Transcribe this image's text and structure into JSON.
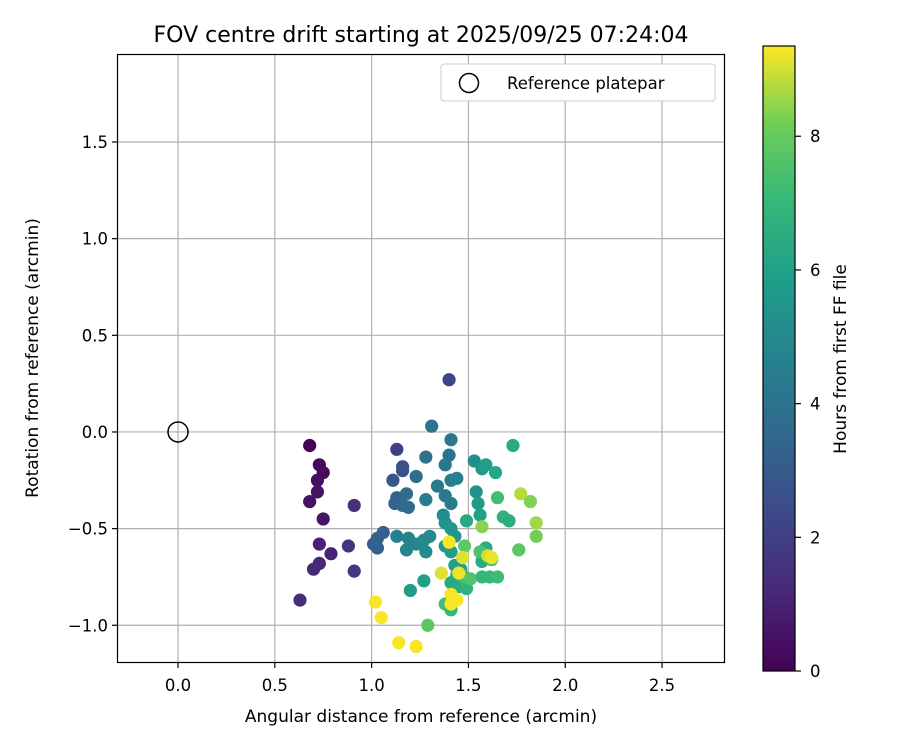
{
  "chart_data": {
    "type": "scatter",
    "title": "FOV centre drift starting at 2025/09/25 07:24:04",
    "xlabel": "Angular distance from reference (arcmin)",
    "ylabel": "Rotation from reference (arcmin)",
    "xlim": [
      -0.31,
      2.82
    ],
    "ylim": [
      -1.19,
      1.95
    ],
    "xticks": [
      0.0,
      0.5,
      1.0,
      1.5,
      2.0,
      2.5
    ],
    "xtick_labels": [
      "0.0",
      "0.5",
      "1.0",
      "1.5",
      "2.0",
      "2.5"
    ],
    "yticks": [
      -1.0,
      -0.5,
      0.0,
      0.5,
      1.0,
      1.5
    ],
    "ytick_labels": [
      "−1.0",
      "−0.5",
      "0.0",
      "0.5",
      "1.0",
      "1.5"
    ],
    "grid": true,
    "legend": {
      "position": "top-right",
      "entries": [
        {
          "label": "Reference platepar",
          "marker": "open-circle"
        }
      ]
    },
    "reference_point": {
      "x": 0.0,
      "y": 0.0
    },
    "colorbar": {
      "label": "Hours from first FF file",
      "min": 0,
      "max": 9.35,
      "ticks": [
        0,
        2,
        4,
        6,
        8
      ],
      "tick_labels": [
        "0",
        "2",
        "4",
        "6",
        "8"
      ],
      "colormap": "viridis"
    },
    "points": [
      {
        "x": 0.68,
        "y": -0.07,
        "t": 0.1
      },
      {
        "x": 0.73,
        "y": -0.17,
        "t": 0.2
      },
      {
        "x": 0.75,
        "y": -0.21,
        "t": 0.3
      },
      {
        "x": 0.72,
        "y": -0.25,
        "t": 0.4
      },
      {
        "x": 0.72,
        "y": -0.31,
        "t": 0.5
      },
      {
        "x": 0.68,
        "y": -0.36,
        "t": 0.5
      },
      {
        "x": 0.75,
        "y": -0.45,
        "t": 0.6
      },
      {
        "x": 0.73,
        "y": -0.58,
        "t": 1.0
      },
      {
        "x": 0.79,
        "y": -0.63,
        "t": 1.1
      },
      {
        "x": 0.73,
        "y": -0.68,
        "t": 1.2
      },
      {
        "x": 0.7,
        "y": -0.71,
        "t": 1.2
      },
      {
        "x": 0.63,
        "y": -0.87,
        "t": 1.3
      },
      {
        "x": 0.91,
        "y": -0.38,
        "t": 1.5
      },
      {
        "x": 0.88,
        "y": -0.59,
        "t": 1.6
      },
      {
        "x": 0.91,
        "y": -0.72,
        "t": 1.7
      },
      {
        "x": 1.13,
        "y": -0.09,
        "t": 2.0
      },
      {
        "x": 1.16,
        "y": -0.18,
        "t": 2.5
      },
      {
        "x": 1.16,
        "y": -0.2,
        "t": 2.6
      },
      {
        "x": 1.11,
        "y": -0.25,
        "t": 2.8
      },
      {
        "x": 1.4,
        "y": 0.27,
        "t": 2.2
      },
      {
        "x": 1.01,
        "y": -0.58,
        "t": 3.0
      },
      {
        "x": 1.03,
        "y": -0.6,
        "t": 3.2
      },
      {
        "x": 1.06,
        "y": -0.52,
        "t": 3.2
      },
      {
        "x": 1.03,
        "y": -0.55,
        "t": 3.3
      },
      {
        "x": 1.12,
        "y": -0.37,
        "t": 3.4
      },
      {
        "x": 1.13,
        "y": -0.34,
        "t": 3.3
      },
      {
        "x": 1.16,
        "y": -0.38,
        "t": 3.5
      },
      {
        "x": 1.19,
        "y": -0.39,
        "t": 3.6
      },
      {
        "x": 1.18,
        "y": -0.32,
        "t": 3.7
      },
      {
        "x": 1.23,
        "y": -0.23,
        "t": 3.8
      },
      {
        "x": 1.28,
        "y": -0.13,
        "t": 3.9
      },
      {
        "x": 1.31,
        "y": 0.03,
        "t": 4.0
      },
      {
        "x": 1.4,
        "y": -0.12,
        "t": 4.0
      },
      {
        "x": 1.41,
        "y": -0.04,
        "t": 4.2
      },
      {
        "x": 1.38,
        "y": -0.17,
        "t": 4.2
      },
      {
        "x": 1.34,
        "y": -0.28,
        "t": 4.3
      },
      {
        "x": 1.38,
        "y": -0.33,
        "t": 4.3
      },
      {
        "x": 1.41,
        "y": -0.37,
        "t": 4.4
      },
      {
        "x": 1.28,
        "y": -0.35,
        "t": 4.4
      },
      {
        "x": 1.41,
        "y": -0.25,
        "t": 4.5
      },
      {
        "x": 1.44,
        "y": -0.24,
        "t": 4.6
      },
      {
        "x": 1.13,
        "y": -0.54,
        "t": 4.6
      },
      {
        "x": 1.19,
        "y": -0.55,
        "t": 4.7
      },
      {
        "x": 1.18,
        "y": -0.61,
        "t": 4.8
      },
      {
        "x": 1.23,
        "y": -0.58,
        "t": 4.8
      },
      {
        "x": 1.27,
        "y": -0.56,
        "t": 5.0
      },
      {
        "x": 1.3,
        "y": -0.54,
        "t": 5.0
      },
      {
        "x": 1.28,
        "y": -0.62,
        "t": 5.1
      },
      {
        "x": 1.37,
        "y": -0.43,
        "t": 5.1
      },
      {
        "x": 1.38,
        "y": -0.47,
        "t": 5.3
      },
      {
        "x": 1.41,
        "y": -0.5,
        "t": 5.5
      },
      {
        "x": 1.43,
        "y": -0.54,
        "t": 5.6
      },
      {
        "x": 1.38,
        "y": -0.59,
        "t": 5.6
      },
      {
        "x": 1.41,
        "y": -0.62,
        "t": 5.8
      },
      {
        "x": 1.2,
        "y": -0.82,
        "t": 5.8
      },
      {
        "x": 1.27,
        "y": -0.77,
        "t": 6.0
      },
      {
        "x": 1.53,
        "y": -0.15,
        "t": 5.2
      },
      {
        "x": 1.57,
        "y": -0.19,
        "t": 5.6
      },
      {
        "x": 1.59,
        "y": -0.17,
        "t": 5.9
      },
      {
        "x": 1.64,
        "y": -0.21,
        "t": 6.2
      },
      {
        "x": 1.54,
        "y": -0.31,
        "t": 5.4
      },
      {
        "x": 1.55,
        "y": -0.37,
        "t": 5.7
      },
      {
        "x": 1.56,
        "y": -0.43,
        "t": 6.0
      },
      {
        "x": 1.49,
        "y": -0.46,
        "t": 6.3
      },
      {
        "x": 1.73,
        "y": -0.07,
        "t": 6.5
      },
      {
        "x": 1.65,
        "y": -0.34,
        "t": 7.3
      },
      {
        "x": 1.68,
        "y": -0.44,
        "t": 6.8
      },
      {
        "x": 1.71,
        "y": -0.46,
        "t": 6.6
      },
      {
        "x": 1.43,
        "y": -0.69,
        "t": 5.9
      },
      {
        "x": 1.46,
        "y": -0.71,
        "t": 6.0
      },
      {
        "x": 1.44,
        "y": -0.74,
        "t": 6.2
      },
      {
        "x": 1.41,
        "y": -0.78,
        "t": 6.3
      },
      {
        "x": 1.45,
        "y": -0.8,
        "t": 6.5
      },
      {
        "x": 1.49,
        "y": -0.81,
        "t": 6.8
      },
      {
        "x": 1.38,
        "y": -0.89,
        "t": 7.2
      },
      {
        "x": 1.41,
        "y": -0.92,
        "t": 7.0
      },
      {
        "x": 1.48,
        "y": -0.75,
        "t": 7.4
      },
      {
        "x": 1.51,
        "y": -0.76,
        "t": 7.6
      },
      {
        "x": 1.57,
        "y": -0.67,
        "t": 6.4
      },
      {
        "x": 1.59,
        "y": -0.6,
        "t": 6.5
      },
      {
        "x": 1.57,
        "y": -0.75,
        "t": 6.9
      },
      {
        "x": 1.61,
        "y": -0.75,
        "t": 7.0
      },
      {
        "x": 1.65,
        "y": -0.75,
        "t": 7.2
      },
      {
        "x": 1.62,
        "y": -0.66,
        "t": 7.3
      },
      {
        "x": 1.56,
        "y": -0.62,
        "t": 7.5
      },
      {
        "x": 1.57,
        "y": -0.49,
        "t": 8.4
      },
      {
        "x": 1.76,
        "y": -0.61,
        "t": 7.8
      },
      {
        "x": 1.29,
        "y": -1.0,
        "t": 7.8
      },
      {
        "x": 1.48,
        "y": -0.59,
        "t": 7.9
      },
      {
        "x": 1.82,
        "y": -0.36,
        "t": 8.3
      },
      {
        "x": 1.85,
        "y": -0.54,
        "t": 8.2
      },
      {
        "x": 1.85,
        "y": -0.47,
        "t": 8.6
      },
      {
        "x": 1.77,
        "y": -0.32,
        "t": 8.8
      },
      {
        "x": 1.4,
        "y": -0.57,
        "t": 9.3
      },
      {
        "x": 1.47,
        "y": -0.65,
        "t": 9.1
      },
      {
        "x": 1.6,
        "y": -0.64,
        "t": 9.0
      },
      {
        "x": 1.62,
        "y": -0.65,
        "t": 9.2
      },
      {
        "x": 1.36,
        "y": -0.73,
        "t": 9.1
      },
      {
        "x": 1.45,
        "y": -0.73,
        "t": 9.2
      },
      {
        "x": 1.41,
        "y": -0.84,
        "t": 9.3
      },
      {
        "x": 1.44,
        "y": -0.87,
        "t": 9.3
      },
      {
        "x": 1.41,
        "y": -0.89,
        "t": 9.3
      },
      {
        "x": 1.02,
        "y": -0.88,
        "t": 9.3
      },
      {
        "x": 1.05,
        "y": -0.96,
        "t": 9.3
      },
      {
        "x": 1.14,
        "y": -1.09,
        "t": 9.3
      },
      {
        "x": 1.23,
        "y": -1.11,
        "t": 9.3
      }
    ]
  }
}
